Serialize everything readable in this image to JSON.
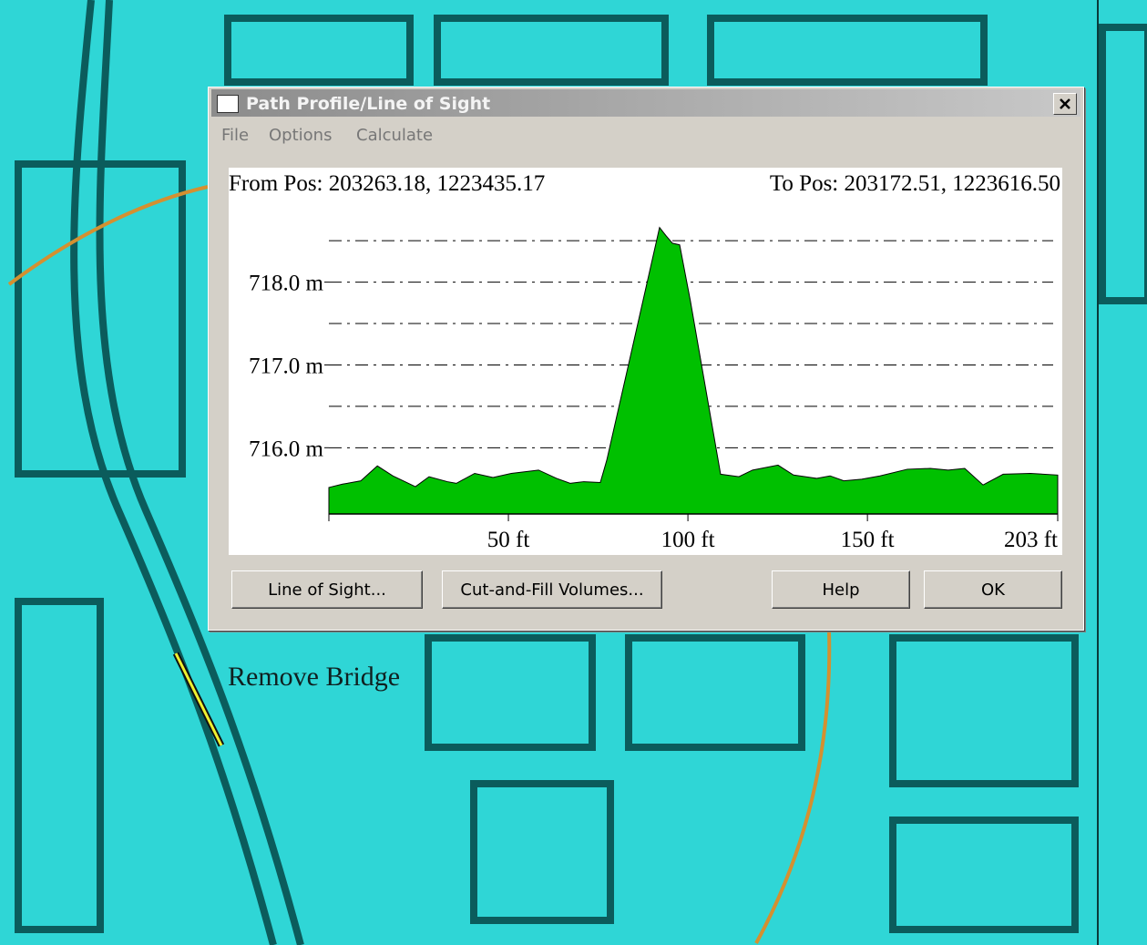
{
  "window": {
    "title": "Path Profile/Line of Sight"
  },
  "menu": [
    "File",
    "Options",
    "Calculate"
  ],
  "chart_data": {
    "type": "area",
    "from_position": "From Pos: 203263.18, 1223435.17",
    "to_position": "To Pos: 203172.51, 1223616.50",
    "x": [
      0,
      3.8,
      8.9,
      13.5,
      17.8,
      24.1,
      27.9,
      33.0,
      35.5,
      40.6,
      45.7,
      50.8,
      58.4,
      63.4,
      67.2,
      71.0,
      75.6,
      77.4,
      83.7,
      92.1,
      93.9,
      95.7,
      97.7,
      100.7,
      109.1,
      114.2,
      118.0,
      125.1,
      129.4,
      135.8,
      139.6,
      143.4,
      148.4,
      153.5,
      161.1,
      167.5,
      172.5,
      177.1,
      182.2,
      187.8,
      195.4,
      203
    ],
    "values": [
      715.52,
      715.56,
      715.6,
      715.78,
      715.66,
      715.53,
      715.65,
      715.59,
      715.57,
      715.69,
      715.64,
      715.69,
      715.73,
      715.63,
      715.57,
      715.59,
      715.58,
      715.85,
      717.05,
      718.66,
      718.56,
      718.47,
      718.45,
      717.77,
      715.68,
      715.65,
      715.73,
      715.79,
      715.67,
      715.63,
      715.66,
      715.6,
      715.62,
      715.66,
      715.74,
      715.75,
      715.73,
      715.75,
      715.55,
      715.68,
      715.69,
      715.67
    ],
    "color": "#00c000",
    "xlim": [
      0,
      203
    ],
    "xticks": [
      {
        "value": 50,
        "label": "50 ft"
      },
      {
        "value": 100,
        "label": "100 ft"
      },
      {
        "value": 150,
        "label": "150 ft"
      },
      {
        "value": 203,
        "label": "203 ft"
      }
    ],
    "ylim": [
      715.2,
      718.7
    ],
    "yticks": [
      {
        "value": 716,
        "label": "716.0 m"
      },
      {
        "value": 717,
        "label": "717.0 m"
      },
      {
        "value": 718,
        "label": "718.0 m"
      }
    ],
    "ygrid_minor": [
      716.5,
      717.5,
      718.5
    ],
    "grid": true
  },
  "buttons": [
    "Line of Sight...",
    "Cut-and-Fill Volumes...",
    "Help",
    "OK"
  ],
  "map_label": "Remove Bridge"
}
